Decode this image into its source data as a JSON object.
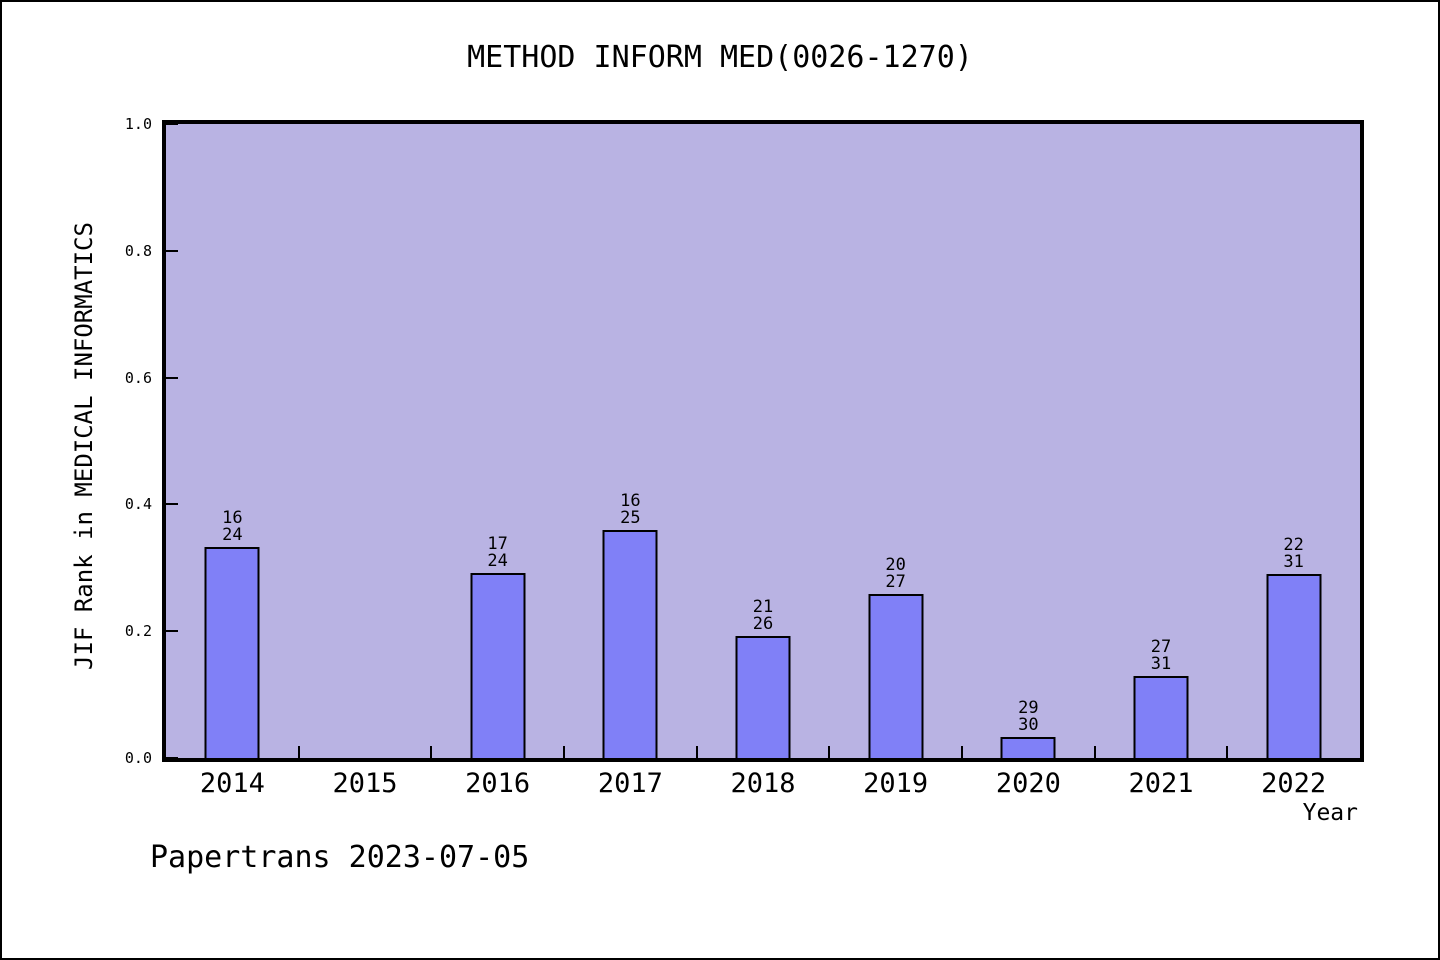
{
  "chart_data": {
    "type": "bar",
    "title": "METHOD INFORM MED(0026-1270)",
    "xlabel": "Year",
    "ylabel": "JIF Rank in MEDICAL INFORMATICS",
    "ylim": [
      0.0,
      1.0
    ],
    "yticks": [
      "0.0",
      "0.2",
      "0.4",
      "0.6",
      "0.8",
      "1.0"
    ],
    "grid": false,
    "legend": "none",
    "categories": [
      "2014",
      "2015",
      "2016",
      "2017",
      "2018",
      "2019",
      "2020",
      "2021",
      "2022"
    ],
    "bars": [
      {
        "year": "2014",
        "rank": 16,
        "total": 24,
        "value": 0.333
      },
      {
        "year": "2015",
        "rank": null,
        "total": null,
        "value": null
      },
      {
        "year": "2016",
        "rank": 17,
        "total": 24,
        "value": 0.292
      },
      {
        "year": "2017",
        "rank": 16,
        "total": 25,
        "value": 0.36
      },
      {
        "year": "2018",
        "rank": 21,
        "total": 26,
        "value": 0.192
      },
      {
        "year": "2019",
        "rank": 20,
        "total": 27,
        "value": 0.259
      },
      {
        "year": "2020",
        "rank": 29,
        "total": 30,
        "value": 0.033
      },
      {
        "year": "2021",
        "rank": 27,
        "total": 31,
        "value": 0.129
      },
      {
        "year": "2022",
        "rank": 22,
        "total": 31,
        "value": 0.29
      }
    ],
    "colors": {
      "plot_bg": "#b9b3e3",
      "bar_fill": "#8080f7",
      "bar_edge": "#000000",
      "text": "#000000"
    }
  },
  "footer": {
    "text": "Papertrans 2023-07-05"
  }
}
